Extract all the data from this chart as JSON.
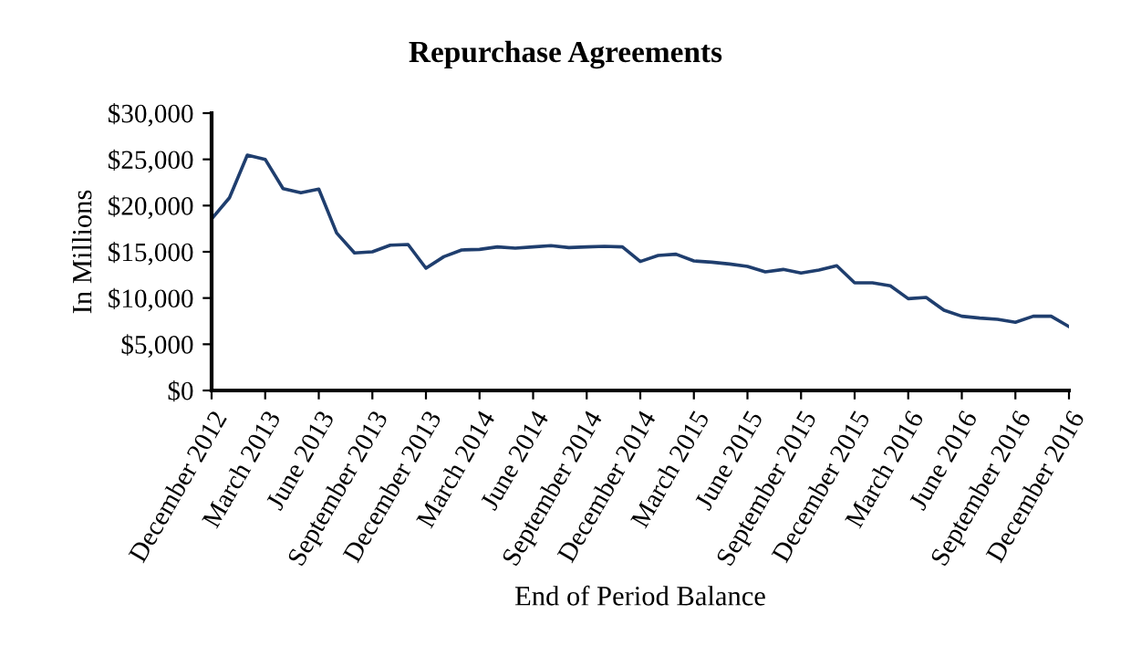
{
  "chart_data": {
    "type": "line",
    "title": "Repurchase Agreements",
    "xlabel": "End of Period Balance",
    "ylabel": "In Millions",
    "categories": [
      "December 2012",
      null,
      null,
      "March 2013",
      null,
      null,
      "June 2013",
      null,
      null,
      "September 2013",
      null,
      null,
      "December 2013",
      null,
      null,
      "March 2014",
      null,
      null,
      "June 2014",
      null,
      null,
      "September 2014",
      null,
      null,
      "December 2014",
      null,
      null,
      "March 2015",
      null,
      null,
      "June 2015",
      null,
      null,
      "September 2015",
      null,
      null,
      "December 2015",
      null,
      null,
      "March 2016",
      null,
      null,
      "June 2016",
      null,
      null,
      "September 2016",
      null,
      null,
      "December 2016"
    ],
    "series": [
      {
        "color": "#1f3e6e",
        "values": [
          18550,
          20850,
          25460,
          25000,
          21840,
          21380,
          21780,
          17040,
          14870,
          15000,
          15720,
          15790,
          13220,
          14470,
          15200,
          15260,
          15530,
          15400,
          15530,
          15660,
          15460,
          15530,
          15590,
          15530,
          13950,
          14600,
          14740,
          14010,
          13880,
          13680,
          13420,
          12830,
          13090,
          12700,
          13030,
          13490,
          11650,
          11650,
          11320,
          9930,
          10070,
          8680,
          8030,
          7830,
          7700,
          7370,
          8030,
          8030,
          6910
        ]
      }
    ],
    "ylim": [
      0,
      30000
    ],
    "yticks": [
      {
        "value": 0,
        "label": "$0"
      },
      {
        "value": 5000,
        "label": "$5,000"
      },
      {
        "value": 10000,
        "label": "$10,000"
      },
      {
        "value": 15000,
        "label": "$15,000"
      },
      {
        "value": 20000,
        "label": "$20,000"
      },
      {
        "value": 25000,
        "label": "$25,000"
      },
      {
        "value": 30000,
        "label": "$30,000"
      }
    ],
    "grid": false,
    "legend": false,
    "marker": "none",
    "line_style": "solid"
  }
}
